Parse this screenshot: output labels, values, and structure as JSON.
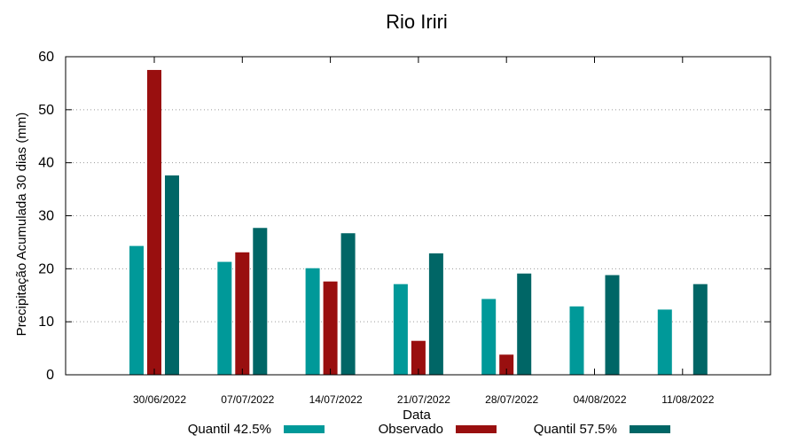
{
  "chart_data": {
    "type": "bar",
    "title": "Rio Iriri",
    "xlabel": "Data",
    "ylabel": "Precipitação Acumulada 30 dias (mm)",
    "ylim": [
      0,
      60
    ],
    "yticks": [
      0,
      10,
      20,
      30,
      40,
      50,
      60
    ],
    "grid": true,
    "legend_position": "bottom",
    "categories": [
      "30/06/2022",
      "07/07/2022",
      "14/07/2022",
      "21/07/2022",
      "28/07/2022",
      "04/08/2022",
      "11/08/2022"
    ],
    "series": [
      {
        "name": "Quantil 42.5%",
        "color": "#009999",
        "values": [
          24.3,
          21.3,
          20.1,
          17.1,
          14.3,
          12.9,
          12.3
        ]
      },
      {
        "name": "Observado",
        "color": "#990f0f",
        "values": [
          57.5,
          23.1,
          17.6,
          6.4,
          3.8,
          null,
          null
        ]
      },
      {
        "name": "Quantil 57.5%",
        "color": "#006666",
        "values": [
          37.6,
          27.7,
          26.7,
          22.9,
          19.1,
          18.8,
          17.1
        ]
      }
    ]
  }
}
